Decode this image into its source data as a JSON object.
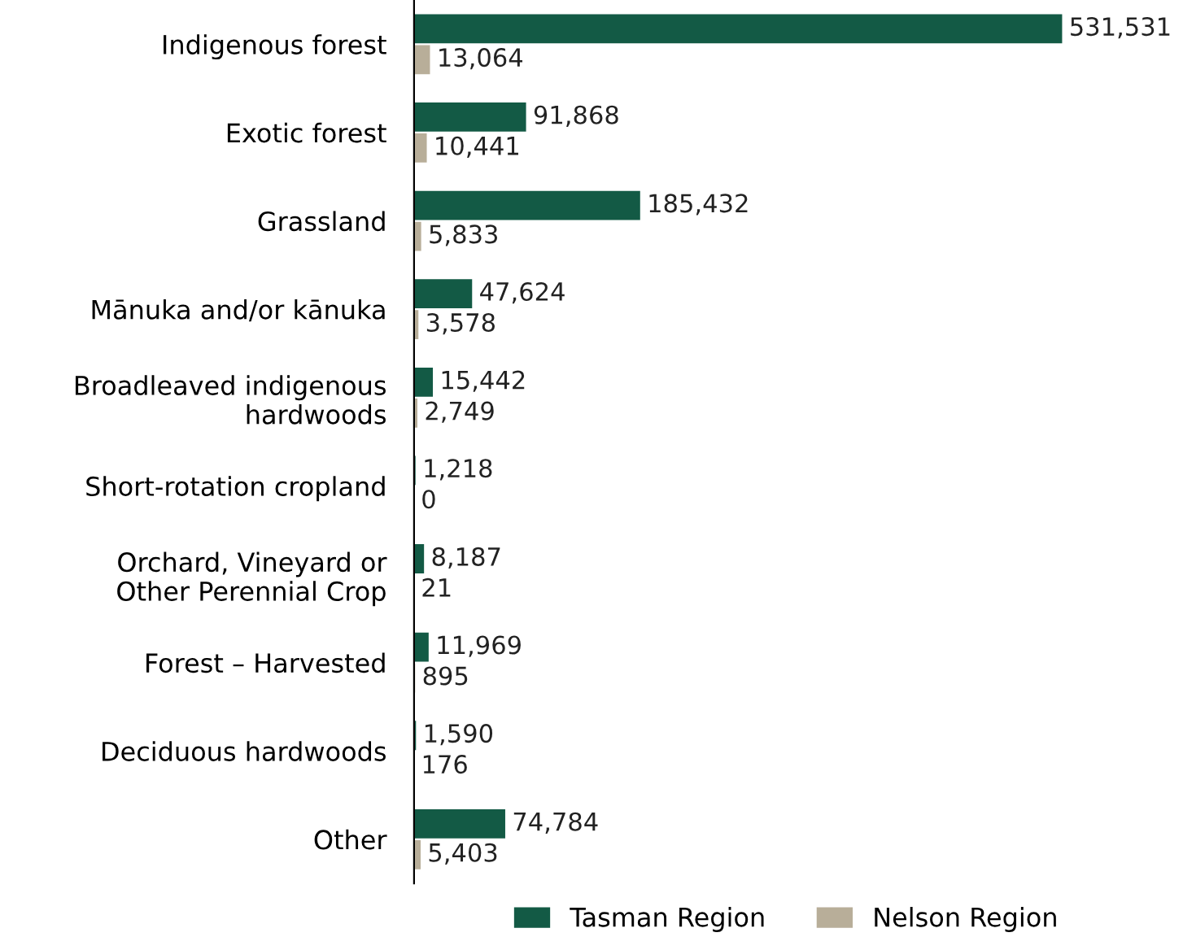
{
  "chart_data": {
    "type": "bar",
    "orientation": "horizontal",
    "legend": "bottom",
    "grid": false,
    "categories": [
      "Indigenous forest",
      "Exotic forest",
      "Grassland",
      "Mānuka and/or kānuka",
      "Broadleaved indigenous\nhardwoods",
      "Short-rotation cropland",
      "Orchard, Vineyard or\nOther Perennial Crop",
      "Forest – Harvested",
      "Deciduous hardwoods",
      "Other"
    ],
    "series": [
      {
        "name": "Tasman Region",
        "color": "#135a45",
        "values": [
          531531,
          91868,
          185432,
          47624,
          15442,
          1218,
          8187,
          11969,
          1590,
          74784
        ],
        "value_labels": [
          "531,531",
          "91,868",
          "185,432",
          "47,624",
          "15,442",
          "1,218",
          "8,187",
          "11,969",
          "1,590",
          "74,784"
        ]
      },
      {
        "name": "Nelson Region",
        "color": "#b8ae99",
        "values": [
          13064,
          10441,
          5833,
          3578,
          2749,
          0,
          21,
          895,
          176,
          5403
        ],
        "value_labels": [
          "13,064",
          "10,441",
          "5,833",
          "3,578",
          "2,749",
          "0",
          "21",
          "895",
          "176",
          "5,403"
        ]
      }
    ]
  }
}
